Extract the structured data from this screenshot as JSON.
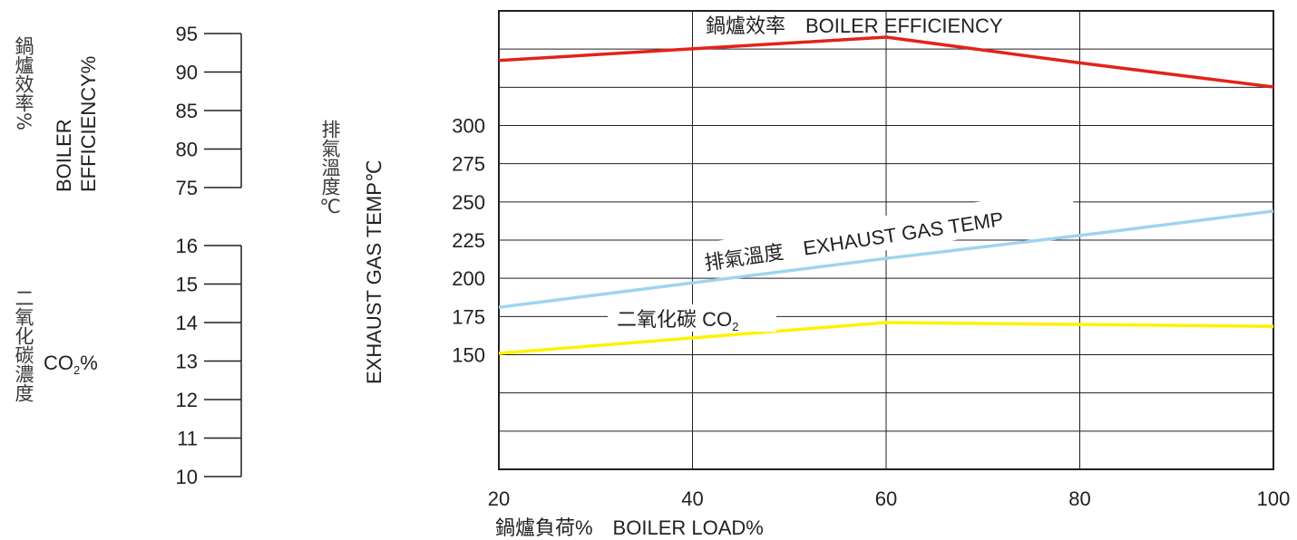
{
  "chart_data": {
    "type": "line",
    "x_axis": {
      "label": "鍋爐負荷%　BOILER LOAD%",
      "ticks": [
        20,
        40,
        60,
        80,
        100
      ],
      "range": [
        20,
        100
      ]
    },
    "efficiency_axis": {
      "label_cn": "鍋爐效率%",
      "label_en": [
        "BOILER",
        "EFFICIENCY%"
      ],
      "ticks": [
        95,
        90,
        85,
        80,
        75
      ]
    },
    "co2_axis": {
      "label_cn": "二氧化碳濃度",
      "label_en": "CO2%",
      "ticks": [
        16,
        15,
        14,
        13,
        12,
        11,
        10
      ]
    },
    "temp_axis": {
      "label_cn": "排氣溫度℃",
      "label_en": "EXHAUST GAS TEMP℃",
      "ticks": [
        300,
        275,
        250,
        225,
        200,
        175,
        150
      ]
    },
    "series": [
      {
        "name": "鍋爐效率　BOILER EFFICIENCY",
        "axis": "efficiency",
        "color": "#e2231a",
        "x": [
          20,
          40,
          60,
          80,
          100
        ],
        "y": [
          91.4,
          92.9,
          94.4,
          91.1,
          88.0
        ]
      },
      {
        "name": "排氣溫度　EXHAUST GAS TEMP",
        "axis": "temp",
        "color": "#9fd4ee",
        "x": [
          20,
          40,
          60,
          80,
          100
        ],
        "y": [
          181,
          197,
          213,
          228,
          244
        ]
      },
      {
        "name": "二氧化碳 CO2",
        "axis": "co2",
        "color": "#fff200",
        "x": [
          20,
          40,
          60,
          80,
          100
        ],
        "y": [
          13.2,
          13.6,
          14.0,
          13.95,
          13.9
        ]
      }
    ],
    "grid": true
  }
}
